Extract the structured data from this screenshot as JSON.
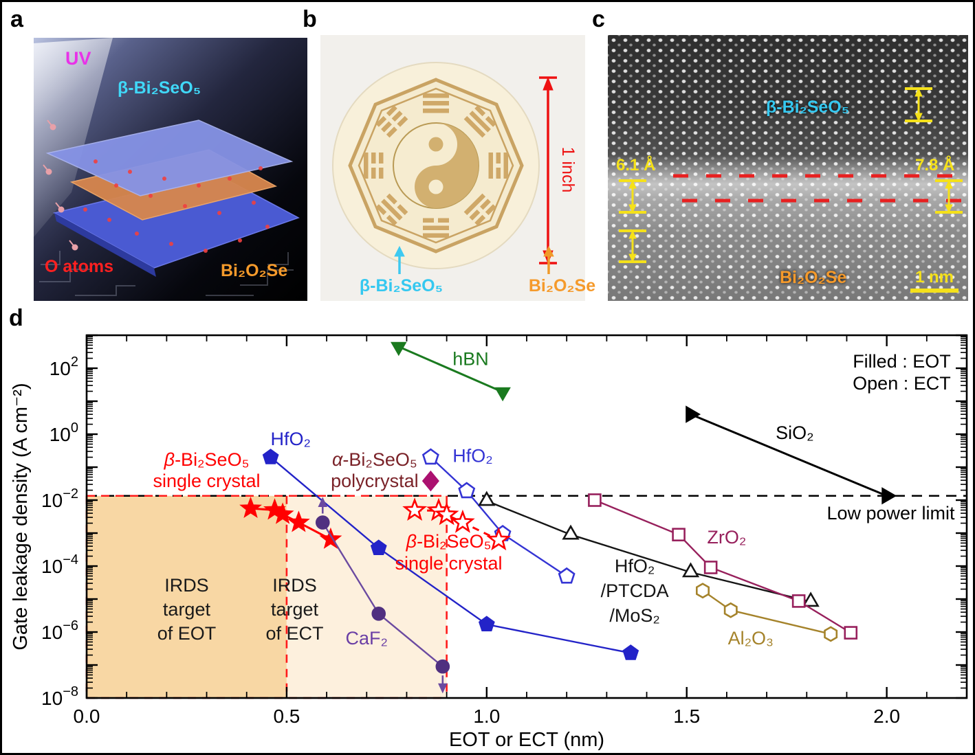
{
  "figure": {
    "background": "#ffffff",
    "border_color": "#000000"
  },
  "panels": {
    "a": {
      "letter": "a",
      "labels": {
        "uv": "UV",
        "film": "β-Bi₂SeO₅",
        "o_atoms": "O atoms",
        "substrate": "Bi₂O₂Se"
      },
      "colors": {
        "uv": "#e832e8",
        "film": "#40d8f8",
        "o_atoms": "#ff2020",
        "substrate": "#f59a2b"
      }
    },
    "b": {
      "letter": "b",
      "labels": {
        "scale": "1 inch",
        "film": "β-Bi₂SeO₅",
        "substrate": "Bi₂O₂Se"
      },
      "colors": {
        "scale": "#ee1111",
        "film": "#35c8f0",
        "substrate": "#f59a2b",
        "wafer_pattern": "#c9a363"
      }
    },
    "c": {
      "letter": "c",
      "labels": {
        "film": "β-Bi₂SeO₅",
        "substrate": "Bi₂O₂Se",
        "spacing_left": "6.1 Å",
        "spacing_right": "7.8 Å",
        "scalebar": "1 nm"
      },
      "colors": {
        "film": "#35c8f0",
        "substrate": "#f59a2b",
        "annotation": "#f5e11a",
        "interface_dash": "#e82020"
      }
    },
    "d": {
      "letter": "d"
    }
  },
  "chart_data": {
    "type": "scatter",
    "xlabel": "EOT or ECT (nm)",
    "ylabel": "Gate leakage density (A cm⁻²)",
    "xlim": [
      0,
      2.2
    ],
    "ylog_top": 3,
    "ylog_bottom": -8,
    "x_major_ticks": [
      0,
      0.5,
      1.0,
      1.5,
      2.0
    ],
    "x_tick_labels": [
      "0.0",
      "0.5",
      "1.0",
      "1.5",
      "2.0"
    ],
    "x_minor_step": 0.1,
    "y_labeled_exponents": [
      2,
      0,
      -2,
      -4,
      -6,
      -8
    ],
    "grid": false,
    "low_power_limit": {
      "value": 0.0135
    },
    "irds": {
      "eot_box": {
        "x0": 0,
        "x1": 0.5,
        "fill": "#f8d7a4"
      },
      "ect_box": {
        "x0": 0.5,
        "x1": 0.9,
        "fill": "#fdf0dd"
      },
      "top_value": 0.0135,
      "bottom_value": 1e-08,
      "border_color": "#ff1a1a"
    },
    "series": [
      {
        "id": "hbn",
        "marker": "triangle-down",
        "filled": true,
        "color": "#1a7a1f",
        "points": [
          [
            0.78,
            450
          ],
          [
            1.04,
            19
          ]
        ]
      },
      {
        "id": "sio2",
        "marker": "triangle-right",
        "filled": true,
        "color": "#000000",
        "points": [
          [
            1.51,
            4.0
          ],
          [
            2.0,
            0.0135
          ]
        ]
      },
      {
        "id": "hfo2-eot",
        "marker": "pentagon",
        "filled": true,
        "color": "#2323c8",
        "points": [
          [
            0.46,
            0.2
          ],
          [
            0.73,
            0.00035
          ],
          [
            1.0,
            1.7e-06
          ],
          [
            1.36,
            2.3e-07
          ]
        ]
      },
      {
        "id": "hfo2-ect",
        "marker": "pentagon",
        "filled": false,
        "color": "#3434d4",
        "points": [
          [
            0.86,
            0.2
          ],
          [
            0.95,
            0.019
          ],
          [
            1.04,
            0.00095
          ],
          [
            1.2,
            4.9e-05
          ]
        ]
      },
      {
        "id": "beta-bi2seo5-single-crystal-eot",
        "marker": "star",
        "filled": true,
        "color": "#ff0000",
        "points": [
          [
            0.41,
            0.0056
          ],
          [
            0.47,
            0.005
          ],
          [
            0.49,
            0.0037
          ],
          [
            0.53,
            0.0021
          ],
          [
            0.61,
            0.00065
          ]
        ]
      },
      {
        "id": "beta-bi2seo5-single-crystal-ect",
        "marker": "star",
        "filled": false,
        "color": "#ff0000",
        "dash": "10 8",
        "points": [
          [
            0.82,
            0.0049
          ],
          [
            0.88,
            0.0048
          ],
          [
            0.9,
            0.0036
          ],
          [
            0.94,
            0.0021
          ],
          [
            1.03,
            0.00062
          ]
        ]
      },
      {
        "id": "alpha-bi2seo5-polycrystal",
        "marker": "diamond",
        "filled": true,
        "color": "#ab1170",
        "no_line": true,
        "points": [
          [
            0.86,
            0.038
          ]
        ]
      },
      {
        "id": "caf2",
        "marker": "circle",
        "filled": true,
        "color": "#503080",
        "line_color": "#6b4aa0",
        "points": [
          [
            0.59,
            0.0021
          ],
          [
            0.73,
            3.6e-06
          ],
          [
            0.89,
            9e-08
          ]
        ],
        "arrows": [
          {
            "x": 0.59,
            "v": 0.0021,
            "dir": "up"
          },
          {
            "x": 0.89,
            "v": 9e-08,
            "dir": "down"
          }
        ]
      },
      {
        "id": "hfo2-ptcda-mos2",
        "marker": "triangle-up",
        "filled": false,
        "color": "#151515",
        "points": [
          [
            1.0,
            0.0095
          ],
          [
            1.21,
            0.0009
          ],
          [
            1.51,
            6.5e-05
          ],
          [
            1.81,
            8.3e-06
          ]
        ]
      },
      {
        "id": "zro2",
        "marker": "square",
        "filled": false,
        "color": "#97205c",
        "points": [
          [
            1.27,
            0.01
          ],
          [
            1.48,
            0.0009
          ],
          [
            1.56,
            9.1e-05
          ],
          [
            1.78,
            8.7e-06
          ],
          [
            1.91,
            9.5e-07
          ]
        ]
      },
      {
        "id": "al2o3",
        "marker": "hexagon",
        "filled": false,
        "color": "#a5832b",
        "points": [
          [
            1.54,
            1.8e-05
          ],
          [
            1.61,
            4.6e-06
          ],
          [
            1.86,
            8.7e-07
          ]
        ]
      }
    ],
    "annotations": [
      {
        "id": "hbn-label",
        "lines": [
          "hBN"
        ],
        "x": 0.96,
        "v": 190,
        "color": "#1a7a1f",
        "anchor": "middle"
      },
      {
        "id": "hfo2-eot-label",
        "lines": [
          "HfO₂"
        ],
        "x": 0.51,
        "v": 0.72,
        "color": "#2323c8",
        "anchor": "middle"
      },
      {
        "id": "beta-left-label",
        "lines": [
          "β-Bi₂SeO₅",
          "single crystal"
        ],
        "x": 0.3,
        "v": 0.17,
        "color": "#ff0000",
        "anchor": "middle",
        "lh": 31
      },
      {
        "id": "alpha-label",
        "lines": [
          "α-Bi₂SeO₅",
          "polycrystal"
        ],
        "x": 0.72,
        "v": 0.17,
        "color": "#7a2228",
        "anchor": "middle",
        "lh": 31
      },
      {
        "id": "hfo2-ect-label",
        "lines": [
          "HfO₂"
        ],
        "x": 0.965,
        "v": 0.22,
        "color": "#3434d4",
        "anchor": "middle"
      },
      {
        "id": "beta-right-label",
        "lines": [
          "β-Bi₂SeO₅",
          "single crystal"
        ],
        "x": 0.905,
        "v": 0.00056,
        "color": "#ff0000",
        "anchor": "middle",
        "lh": 32
      },
      {
        "id": "sio2-label",
        "lines": [
          "SiO₂"
        ],
        "x": 1.77,
        "v": 1.1,
        "color": "#000000",
        "anchor": "middle"
      },
      {
        "id": "low-power-label",
        "lines": [
          "Low power limit"
        ],
        "x": 2.17,
        "v": 0.004,
        "color": "#000000",
        "anchor": "end"
      },
      {
        "id": "legend",
        "lines": [
          "Filled : EOT",
          "Open : ECT"
        ],
        "x": 2.16,
        "v": 160,
        "color": "#000000",
        "anchor": "end",
        "lh": 32
      },
      {
        "id": "irds-eot-label",
        "lines": [
          "IRDS",
          "target",
          "of EOT"
        ],
        "x": 0.25,
        "v": 2.6e-05,
        "color": "#1a1a1a",
        "anchor": "middle",
        "lh": 35
      },
      {
        "id": "irds-ect-label",
        "lines": [
          "IRDS",
          "target",
          "of ECT"
        ],
        "x": 0.52,
        "v": 2.6e-05,
        "color": "#1a1a1a",
        "anchor": "middle",
        "lh": 35
      },
      {
        "id": "caf2-label",
        "lines": [
          "CaF₂"
        ],
        "x": 0.7,
        "v": 6.5e-07,
        "color": "#6a3fa5",
        "anchor": "middle"
      },
      {
        "id": "ptcda-label",
        "lines": [
          "HfO₂",
          "/PTCDA",
          "/MoS₂"
        ],
        "x": 1.37,
        "v": 0.0001,
        "color": "#151515",
        "anchor": "middle",
        "lh": 36
      },
      {
        "id": "zro2-label",
        "lines": [
          "ZrO₂"
        ],
        "x": 1.6,
        "v": 0.00075,
        "color": "#97205c",
        "anchor": "middle"
      },
      {
        "id": "al2o3-label",
        "lines": [
          "Al₂O₃"
        ],
        "x": 1.66,
        "v": 6.5e-07,
        "color": "#a5832b",
        "anchor": "middle"
      }
    ]
  }
}
